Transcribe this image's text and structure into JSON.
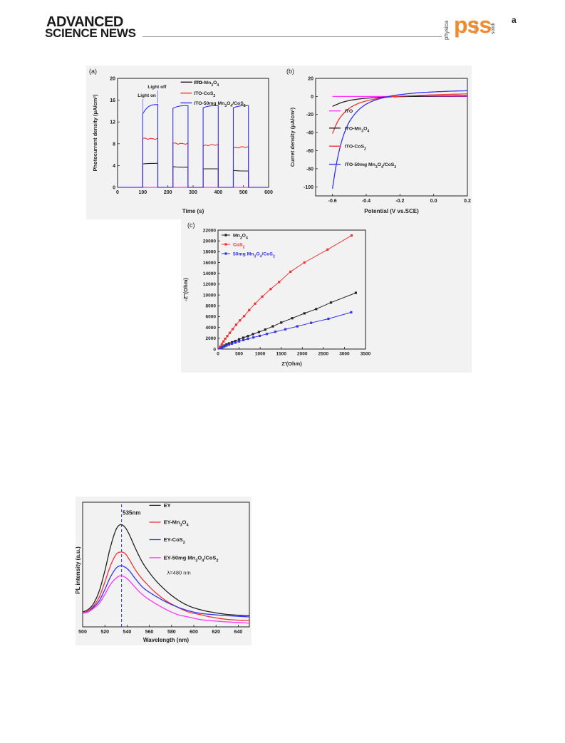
{
  "header": {
    "journal_line1": "ADVANCED",
    "journal_line2": "SCIENCE NEWS",
    "pss_letters": "pss",
    "pss_sup": "a",
    "pss_vertical": [
      "physica",
      "status",
      "solidi"
    ]
  },
  "colors": {
    "magenta": "#ff33ff",
    "black": "#222222",
    "red": "#ee3333",
    "blue": "#3333ee",
    "panel_bg": "#f2f2f2"
  },
  "chart_data": [
    {
      "id": "a",
      "type": "line",
      "panel_label": "(a)",
      "xlabel": "Time (s)",
      "ylabel": "Photocurrent density (μA/cm²)",
      "xlim": [
        0,
        600
      ],
      "ylim": [
        0,
        20
      ],
      "xticks": [
        0,
        100,
        200,
        300,
        400,
        500,
        600
      ],
      "yticks": [
        0,
        4,
        8,
        12,
        16,
        20
      ],
      "annotations": [
        "Light on",
        "Light off"
      ],
      "legend": [
        "ITO",
        "ITO-Mn3O4",
        "ITO-CoS2",
        "ITO-50mg Mn3O4/CoS2"
      ],
      "legend_placement": "top-right",
      "on_intervals": [
        [
          100,
          160
        ],
        [
          220,
          280
        ],
        [
          340,
          400
        ],
        [
          460,
          520
        ]
      ],
      "series": [
        {
          "name": "ITO",
          "color": "#ff33ff",
          "on_start": [
            0,
            0,
            0,
            0
          ],
          "on_end": [
            0,
            0,
            0,
            0
          ]
        },
        {
          "name": "ITO-Mn3O4",
          "color": "#222222",
          "on_start": [
            4.3,
            3.8,
            3.4,
            3.1
          ],
          "on_end": [
            4.4,
            3.7,
            3.4,
            3.0
          ]
        },
        {
          "name": "ITO-CoS2",
          "color": "#ee3333",
          "on_start": [
            9.0,
            8.1,
            7.6,
            7.2
          ],
          "on_end": [
            8.9,
            8.0,
            7.8,
            7.4
          ]
        },
        {
          "name": "ITO-50mg Mn3O4/CoS2",
          "color": "#3333ee",
          "on_start": [
            13.5,
            14.5,
            14.6,
            14.6
          ],
          "on_end": [
            15.2,
            15.0,
            15.0,
            15.0
          ]
        }
      ]
    },
    {
      "id": "b",
      "type": "line",
      "panel_label": "(b)",
      "xlabel": "Potential (V vs.SCE)",
      "ylabel": "Curret density (μA/cm²)",
      "xlim": [
        -0.7,
        0.2
      ],
      "ylim": [
        -110,
        20
      ],
      "xticks": [
        -0.6,
        -0.4,
        -0.2,
        0.0,
        0.2
      ],
      "xtick_labels": [
        "-0.6",
        "-0.4",
        "-0.2",
        "0.0",
        "0.2"
      ],
      "yticks": [
        -100,
        -80,
        -60,
        -40,
        -20,
        0,
        20
      ],
      "legend": [
        "ITO",
        "ITO-Mn3O4",
        "ITO-CoS2",
        "ITO-50mg Mn3O4/CoS2"
      ],
      "legend_placement": "center-right",
      "series": [
        {
          "name": "ITO",
          "color": "#ff33ff",
          "x": [
            -0.6,
            -0.4,
            -0.2,
            0.0,
            0.2
          ],
          "y": [
            0,
            0,
            0,
            0,
            0
          ]
        },
        {
          "name": "ITO-Mn3O4",
          "color": "#222222",
          "x": [
            -0.6,
            -0.55,
            -0.5,
            -0.45,
            -0.4,
            -0.3,
            -0.2,
            0.0,
            0.2
          ],
          "y": [
            -11,
            -7,
            -4.5,
            -3,
            -2,
            -0.8,
            -0.2,
            0.3,
            0.6
          ]
        },
        {
          "name": "ITO-CoS2",
          "color": "#ee3333",
          "x": [
            -0.6,
            -0.57,
            -0.54,
            -0.5,
            -0.45,
            -0.4,
            -0.35,
            -0.3,
            -0.25,
            -0.2,
            0.0,
            0.2
          ],
          "y": [
            -41,
            -28,
            -20,
            -13,
            -8,
            -5,
            -3,
            -1.5,
            -0.5,
            0.2,
            1.8,
            2.8
          ]
        },
        {
          "name": "ITO-50mg Mn3O4/CoS2",
          "color": "#3333ee",
          "x": [
            -0.6,
            -0.58,
            -0.56,
            -0.54,
            -0.52,
            -0.5,
            -0.47,
            -0.44,
            -0.4,
            -0.36,
            -0.32,
            -0.28,
            -0.25,
            -0.2,
            -0.1,
            0.0,
            0.1,
            0.2
          ],
          "y": [
            -102,
            -78,
            -60,
            -46,
            -36,
            -28,
            -20,
            -14,
            -8.5,
            -5,
            -2.5,
            -0.6,
            0.6,
            2.0,
            3.9,
            5.0,
            5.8,
            6.3
          ]
        }
      ]
    },
    {
      "id": "c",
      "type": "scatter",
      "panel_label": "(c)",
      "xlabel": "Z'(Ohm)",
      "ylabel": "-Z''(Ohm)",
      "xlim": [
        0,
        3500
      ],
      "ylim": [
        0,
        22000
      ],
      "xticks": [
        0,
        500,
        1000,
        1500,
        2000,
        2500,
        3000,
        3500
      ],
      "yticks": [
        0,
        2000,
        4000,
        6000,
        8000,
        10000,
        12000,
        14000,
        16000,
        18000,
        20000,
        22000
      ],
      "legend": [
        "Mn3O4",
        "CoS2",
        "50mg Mn3O4/CoS2"
      ],
      "legend_placement": "top-left",
      "series": [
        {
          "name": "Mn3O4",
          "color": "#222222",
          "x": [
            60,
            100,
            150,
            200,
            260,
            330,
            410,
            500,
            600,
            710,
            830,
            970,
            1120,
            1300,
            1500,
            1760,
            2050,
            2330,
            2680,
            3270
          ],
          "y": [
            200,
            400,
            650,
            850,
            1050,
            1250,
            1500,
            1800,
            2100,
            2400,
            2750,
            3150,
            3600,
            4200,
            4900,
            5700,
            6600,
            7400,
            8600,
            10400
          ]
        },
        {
          "name": "CoS2",
          "color": "#ee3333",
          "x": [
            50,
            90,
            130,
            170,
            220,
            280,
            350,
            430,
            520,
            620,
            740,
            880,
            1050,
            1250,
            1450,
            1720,
            2050,
            2600,
            3170
          ],
          "y": [
            450,
            900,
            1400,
            1900,
            2400,
            3000,
            3700,
            4500,
            5300,
            6100,
            7200,
            8400,
            9700,
            11100,
            12400,
            14300,
            16000,
            18400,
            21000
          ]
        },
        {
          "name": "50mg Mn3O4/CoS2",
          "color": "#3333ee",
          "x": [
            60,
            100,
            150,
            200,
            260,
            330,
            410,
            500,
            600,
            710,
            840,
            990,
            1160,
            1360,
            1600,
            1880,
            2210,
            2620,
            3160
          ],
          "y": [
            150,
            300,
            480,
            650,
            820,
            1000,
            1200,
            1420,
            1650,
            1900,
            2150,
            2450,
            2800,
            3200,
            3650,
            4200,
            4850,
            5600,
            6800
          ]
        }
      ]
    },
    {
      "id": "d",
      "type": "line",
      "panel_label": "",
      "xlabel": "Wavelength (nm)",
      "ylabel": "PL intensity (a.u.)",
      "xlim": [
        500,
        650
      ],
      "ylim": [
        0,
        1.0
      ],
      "xticks": [
        500,
        520,
        540,
        560,
        580,
        600,
        620,
        640
      ],
      "yticks": [],
      "annotations": [
        "535nm",
        "λ=480 nm"
      ],
      "reference_line_x": 535,
      "legend": [
        "EY",
        "EY-Mn3O4",
        "EY-CoS2",
        "EY-50mg Mn3O4/CoS2"
      ],
      "legend_placement": "top-right",
      "series": [
        {
          "name": "EY",
          "color": "#222222",
          "x": [
            500,
            505,
            510,
            515,
            520,
            525,
            530,
            534,
            538,
            542,
            548,
            555,
            565,
            575,
            585,
            595,
            605,
            615,
            630,
            650
          ],
          "y": [
            0.12,
            0.14,
            0.19,
            0.29,
            0.45,
            0.64,
            0.78,
            0.82,
            0.8,
            0.74,
            0.62,
            0.5,
            0.38,
            0.29,
            0.22,
            0.17,
            0.14,
            0.12,
            0.1,
            0.09
          ]
        },
        {
          "name": "EY-Mn3O4",
          "color": "#ee3333",
          "x": [
            500,
            505,
            510,
            515,
            520,
            525,
            530,
            534,
            538,
            542,
            548,
            555,
            565,
            575,
            585,
            595,
            605,
            615,
            630,
            650
          ],
          "y": [
            0.11,
            0.13,
            0.17,
            0.24,
            0.36,
            0.49,
            0.58,
            0.6,
            0.59,
            0.54,
            0.45,
            0.37,
            0.28,
            0.21,
            0.16,
            0.12,
            0.1,
            0.08,
            0.06,
            0.05
          ]
        },
        {
          "name": "EY-CoS2",
          "color": "#3333ee",
          "x": [
            500,
            505,
            510,
            515,
            520,
            525,
            530,
            534,
            538,
            542,
            548,
            555,
            565,
            575,
            585,
            595,
            605,
            615,
            630,
            650
          ],
          "y": [
            0.11,
            0.12,
            0.16,
            0.21,
            0.3,
            0.4,
            0.47,
            0.49,
            0.48,
            0.45,
            0.38,
            0.31,
            0.25,
            0.2,
            0.16,
            0.13,
            0.11,
            0.1,
            0.09,
            0.08
          ]
        },
        {
          "name": "EY-50mg Mn3O4/CoS2",
          "color": "#ff33ff",
          "x": [
            500,
            505,
            510,
            515,
            520,
            525,
            530,
            534,
            538,
            542,
            548,
            555,
            565,
            575,
            585,
            595,
            605,
            615,
            630,
            650
          ],
          "y": [
            0.11,
            0.12,
            0.15,
            0.19,
            0.26,
            0.34,
            0.39,
            0.41,
            0.4,
            0.37,
            0.31,
            0.25,
            0.19,
            0.14,
            0.1,
            0.08,
            0.06,
            0.05,
            0.04,
            0.03
          ]
        }
      ]
    }
  ]
}
